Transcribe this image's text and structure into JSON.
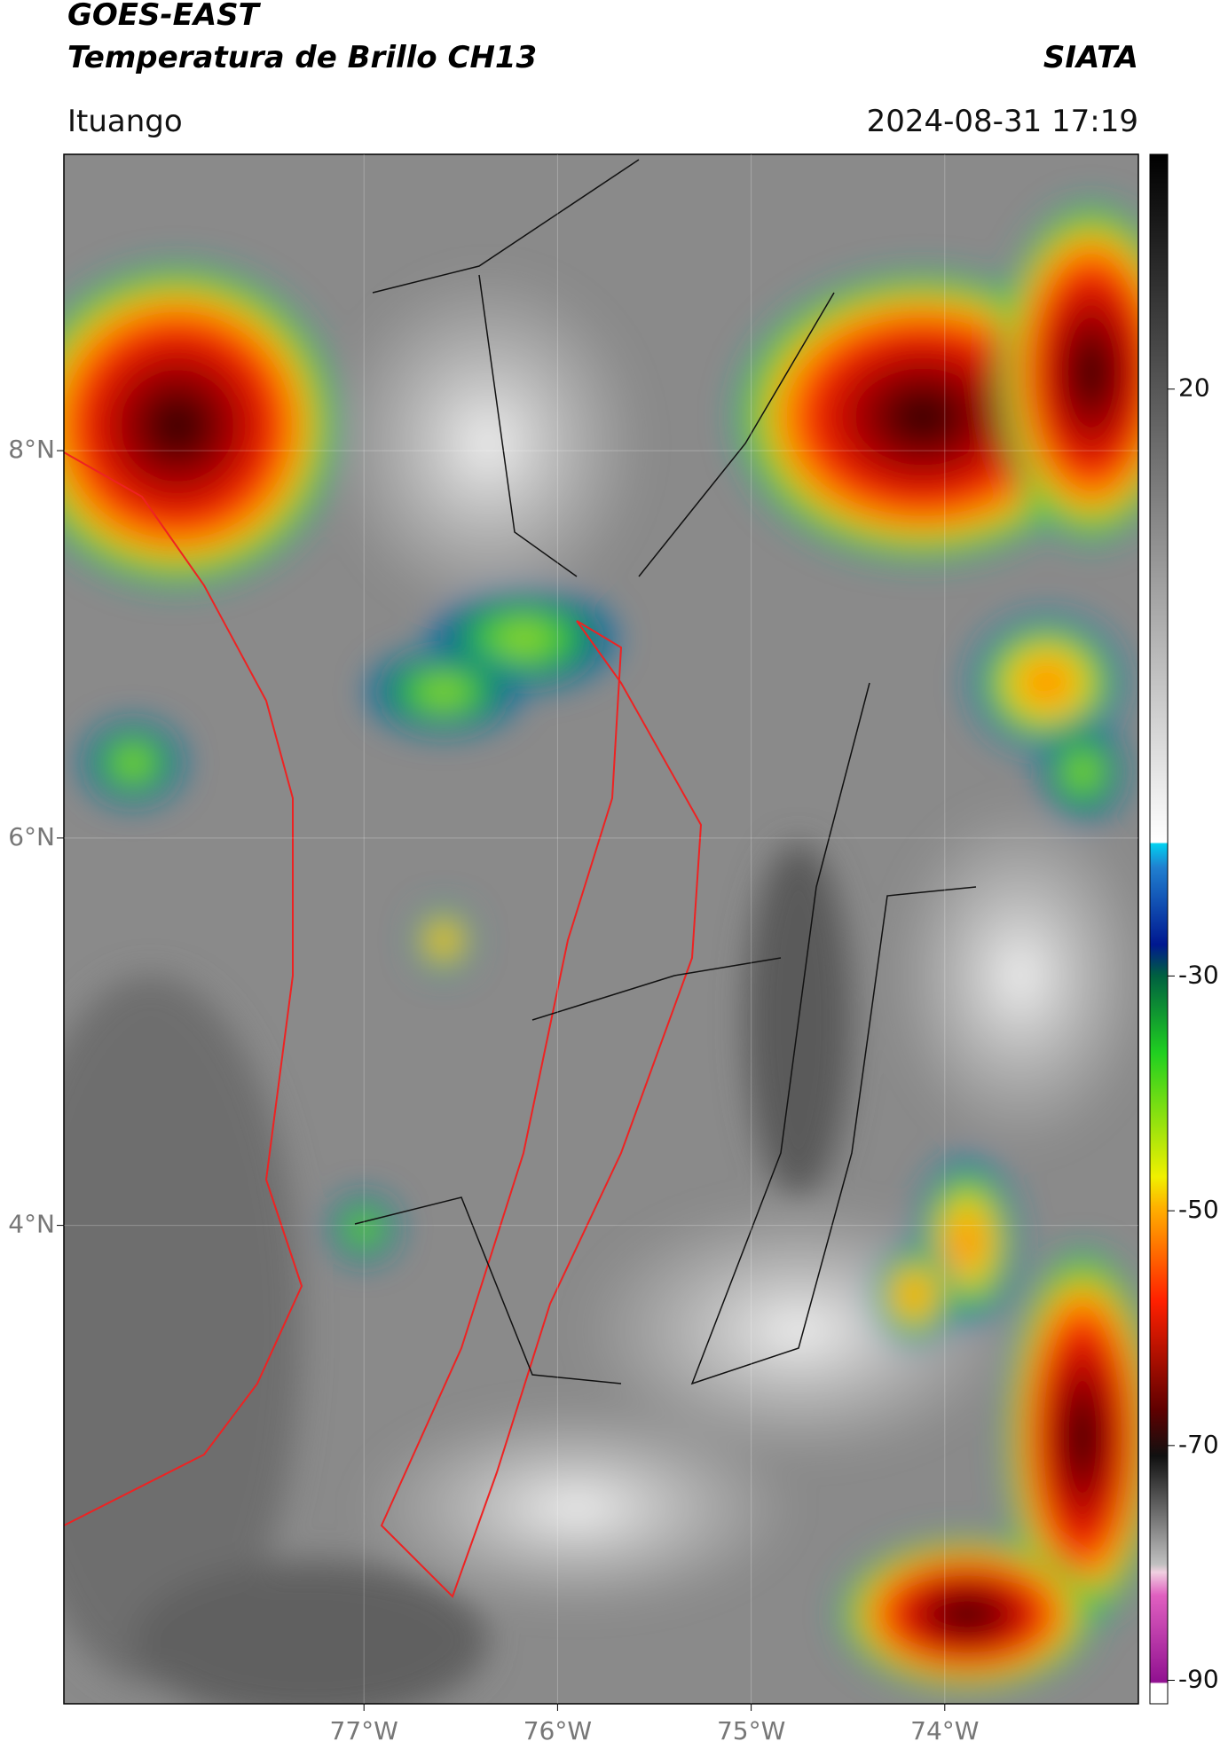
{
  "map": {
    "title": "GOES-EAST",
    "subtitle": "Temperatura de Brillo CH13",
    "agency": "SIATA",
    "location": "Ituango",
    "datetime": "2024-08-31 17:19",
    "lonlim": [
      -78.55,
      -73.0
    ],
    "latlim": [
      1.53,
      9.53
    ],
    "lonticks": [
      {
        "value": -77,
        "label": "77°W"
      },
      {
        "value": -76,
        "label": "76°W"
      },
      {
        "value": -75,
        "label": "75°W"
      },
      {
        "value": -74,
        "label": "74°W"
      }
    ],
    "latticks": [
      {
        "value": 8,
        "label": "8°N"
      },
      {
        "value": 6,
        "label": "6°N"
      },
      {
        "value": 4,
        "label": "4°N"
      }
    ],
    "colorbar": {
      "lim": [
        -92,
        40
      ],
      "ticks": [
        20,
        -30,
        -50,
        -70,
        -90
      ]
    }
  }
}
